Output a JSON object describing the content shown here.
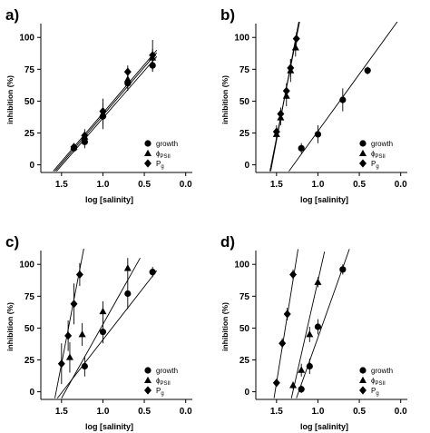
{
  "chart_data": [
    {
      "panel": "a)",
      "type": "scatter",
      "xlabel": "log [salinity]",
      "ylabel": "inhibition (%)",
      "xlim": [
        1.75,
        -0.08
      ],
      "ylim": [
        -6,
        108
      ],
      "xticks": [
        "1.5",
        "1.0",
        "0.5",
        "0.0"
      ],
      "yticks": [
        "0",
        "25",
        "50",
        "75",
        "100"
      ],
      "x_reversed": true,
      "legend_position": "bottom-right",
      "series": [
        {
          "name": "growth",
          "marker": "circle",
          "x": [
            1.35,
            1.22,
            1.0,
            0.7,
            0.4
          ],
          "y": [
            13,
            18,
            38,
            64,
            78
          ],
          "err": [
            3,
            5,
            7,
            6,
            5
          ]
        },
        {
          "name": "ϕPSII",
          "legend_main": "ϕ",
          "legend_sub": "PSII",
          "marker": "triangle",
          "x": [
            1.35,
            1.22,
            1.0,
            0.7,
            0.4
          ],
          "y": [
            14,
            22,
            40,
            67,
            84
          ],
          "err": [
            3,
            4,
            12,
            7,
            7
          ]
        },
        {
          "name": "Pg",
          "legend_main": "P",
          "legend_sub": "g",
          "marker": "diamond",
          "x": [
            1.35,
            1.22,
            1.0,
            0.7,
            0.4
          ],
          "y": [
            14,
            23,
            42,
            73,
            86
          ],
          "err": [
            3,
            5,
            6,
            5,
            12
          ]
        }
      ],
      "fit_lines": [
        {
          "x": [
            1.6,
            0.35
          ],
          "y": [
            -5,
            90
          ]
        },
        {
          "x": [
            1.58,
            0.35
          ],
          "y": [
            -5,
            88
          ]
        },
        {
          "x": [
            1.56,
            0.35
          ],
          "y": [
            -5,
            85
          ]
        }
      ]
    },
    {
      "panel": "b)",
      "type": "scatter",
      "xlabel": "log [salinity]",
      "ylabel": "inhibition (%)",
      "xlim": [
        1.75,
        -0.08
      ],
      "ylim": [
        -6,
        108
      ],
      "xticks": [
        "1.5",
        "1.0",
        "0.5",
        "0.0"
      ],
      "yticks": [
        "0",
        "25",
        "50",
        "75",
        "100"
      ],
      "x_reversed": true,
      "legend_position": "bottom-right",
      "series": [
        {
          "name": "growth",
          "marker": "circle",
          "x": [
            1.2,
            1.0,
            0.7,
            0.4
          ],
          "y": [
            13,
            24,
            51,
            74
          ],
          "err": [
            4,
            7,
            9,
            3
          ]
        },
        {
          "name": "ϕPSII",
          "legend_main": "ϕ",
          "legend_sub": "PSII",
          "marker": "triangle",
          "x": [
            1.5,
            1.45,
            1.38,
            1.33,
            1.27
          ],
          "y": [
            24,
            37,
            54,
            74,
            92
          ],
          "err": [
            4,
            6,
            8,
            9,
            7
          ]
        },
        {
          "name": "Pg",
          "legend_main": "P",
          "legend_sub": "g",
          "marker": "diamond",
          "x": [
            1.5,
            1.45,
            1.38,
            1.33,
            1.26
          ],
          "y": [
            26,
            40,
            58,
            76,
            99
          ],
          "err": [
            5,
            5,
            6,
            7,
            5
          ]
        }
      ],
      "fit_lines": [
        {
          "x": [
            1.35,
            0.0
          ],
          "y": [
            -5,
            116
          ]
        },
        {
          "x": [
            1.57,
            1.22
          ],
          "y": [
            -5,
            116
          ]
        },
        {
          "x": [
            1.58,
            1.21
          ],
          "y": [
            -5,
            116
          ]
        }
      ]
    },
    {
      "panel": "c)",
      "type": "scatter",
      "xlabel": "log [salinity]",
      "ylabel": "inhibition (%)",
      "xlim": [
        1.75,
        -0.08
      ],
      "ylim": [
        -6,
        108
      ],
      "xticks": [
        "1.5",
        "1.0",
        "0.5",
        "0.0"
      ],
      "yticks": [
        "0",
        "25",
        "50",
        "75",
        "100"
      ],
      "x_reversed": true,
      "legend_position": "bottom-right",
      "series": [
        {
          "name": "growth",
          "marker": "circle",
          "x": [
            1.22,
            1.0,
            0.7,
            0.4
          ],
          "y": [
            20,
            47,
            77,
            94
          ],
          "err": [
            8,
            9,
            12,
            4
          ]
        },
        {
          "name": "ϕPSII",
          "legend_main": "ϕ",
          "legend_sub": "PSII",
          "marker": "triangle",
          "x": [
            1.4,
            1.25,
            1.0,
            0.7
          ],
          "y": [
            27,
            45,
            63,
            97
          ],
          "err": [
            12,
            9,
            8,
            8
          ]
        },
        {
          "name": "Pg",
          "legend_main": "P",
          "legend_sub": "g",
          "marker": "diamond",
          "x": [
            1.5,
            1.42,
            1.35,
            1.28
          ],
          "y": [
            22,
            44,
            69,
            92
          ],
          "err": [
            16,
            12,
            16,
            9
          ]
        }
      ],
      "fit_lines": [
        {
          "x": [
            1.55,
            0.35
          ],
          "y": [
            -5,
            95
          ]
        },
        {
          "x": [
            1.5,
            0.55
          ],
          "y": [
            -5,
            105
          ]
        },
        {
          "x": [
            1.58,
            1.22
          ],
          "y": [
            -5,
            116
          ]
        }
      ]
    },
    {
      "panel": "d)",
      "type": "scatter",
      "xlabel": "log [salinity]",
      "ylabel": "inhibition (%)",
      "xlim": [
        1.75,
        -0.08
      ],
      "ylim": [
        -6,
        108
      ],
      "xticks": [
        "1.5",
        "1.0",
        "0.5",
        "0.0"
      ],
      "yticks": [
        "0",
        "25",
        "50",
        "75",
        "100"
      ],
      "x_reversed": true,
      "legend_position": "bottom-right",
      "series": [
        {
          "name": "growth",
          "marker": "circle",
          "x": [
            1.2,
            1.1,
            1.0,
            0.7
          ],
          "y": [
            2,
            20,
            51,
            96
          ],
          "err": [
            3,
            6,
            6,
            4
          ]
        },
        {
          "name": "ϕPSII",
          "legend_main": "ϕ",
          "legend_sub": "PSII",
          "marker": "triangle",
          "x": [
            1.3,
            1.2,
            1.1,
            1.0
          ],
          "y": [
            5,
            17,
            45,
            86
          ],
          "err": [
            3,
            5,
            6,
            4
          ]
        },
        {
          "name": "Pg",
          "legend_main": "P",
          "legend_sub": "g",
          "marker": "diamond",
          "x": [
            1.5,
            1.43,
            1.37,
            1.3
          ],
          "y": [
            7,
            38,
            61,
            92
          ],
          "err": [
            3,
            4,
            5,
            4
          ]
        }
      ],
      "fit_lines": [
        {
          "x": [
            1.26,
            0.62
          ],
          "y": [
            -5,
            112
          ]
        },
        {
          "x": [
            1.32,
            0.92
          ],
          "y": [
            -5,
            110
          ]
        },
        {
          "x": [
            1.53,
            1.24
          ],
          "y": [
            -5,
            112
          ]
        }
      ]
    }
  ]
}
